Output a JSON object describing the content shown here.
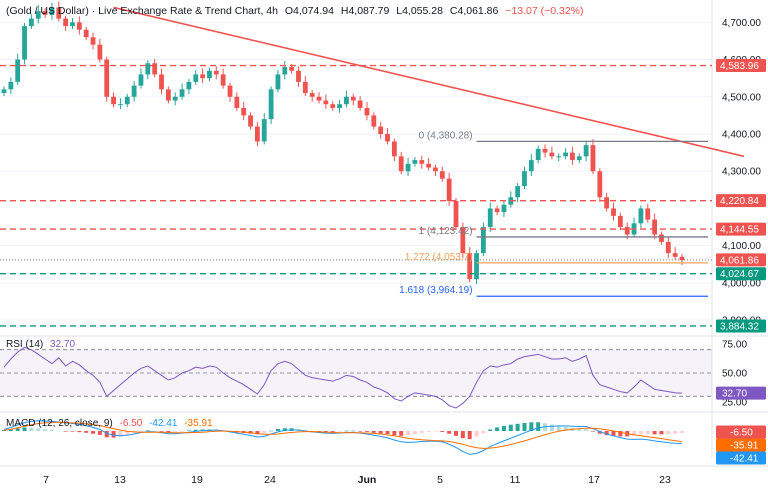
{
  "header": {
    "symbol": "(Gold / US Dollar) · Live Exchange Rate & Trend Chart, 4h",
    "open": "O4,074.94",
    "high": "H4,087.79",
    "low": "L4,055.28",
    "close": "C4,061.86",
    "change": "−13.07 (−0.32%)"
  },
  "colors": {
    "up": "#26a69a",
    "down": "#ef5350",
    "trend": "#ef5350",
    "support": "#089981",
    "fib_orange": "#f7a35c",
    "fib_blue": "#2962ff",
    "gray": "#787b86",
    "rsi": "#7e57c2",
    "macd": "#2196f3",
    "signal": "#ff6d00"
  },
  "chart_data": [
    {
      "type": "candlestick",
      "title": "",
      "x_ticks": [
        "7",
        "13",
        "19",
        "24",
        "Jun",
        "5",
        "11",
        "17",
        "23"
      ],
      "ylim": [
        3860,
        4760
      ],
      "y_ticks": [
        "4,700.00",
        "4,600.00",
        "4,500.00",
        "4,400.00",
        "4,300.00",
        "4,100.00",
        "4,000.00",
        "3,900.00"
      ],
      "price_levels": [
        {
          "value": 4583.96,
          "label": "4,583.96",
          "style": "red-dashed"
        },
        {
          "value": 4220.84,
          "label": "4,220.84",
          "style": "red-dashed"
        },
        {
          "value": 4144.55,
          "label": "4,144.55",
          "style": "red-dashed"
        },
        {
          "value": 4061.86,
          "label": "4,061.86",
          "style": "current"
        },
        {
          "value": 4024.67,
          "label": "4,024.67",
          "style": "green-dashed"
        },
        {
          "value": 3884.32,
          "label": "3,884.32",
          "style": "green-dashed"
        }
      ],
      "fib_levels": [
        {
          "value": 4380.28,
          "label": "0 (4,380.28)",
          "color": "gray"
        },
        {
          "value": 4123.42,
          "label": "1 (4,123.42)",
          "color": "gray"
        },
        {
          "value": 4053.7,
          "label": "1.272 (4,053.7)",
          "color": "orange"
        },
        {
          "value": 3964.19,
          "label": "1.618 (3,964.19)",
          "color": "blue"
        }
      ],
      "close_path": [
        4520,
        4540,
        4600,
        4690,
        4710,
        4730,
        4720,
        4740,
        4710,
        4690,
        4700,
        4680,
        4660,
        4640,
        4600,
        4500,
        4480,
        4480,
        4500,
        4530,
        4560,
        4590,
        4560,
        4520,
        4490,
        4500,
        4520,
        4540,
        4560,
        4550,
        4570,
        4560,
        4530,
        4500,
        4470,
        4450,
        4420,
        4380,
        4440,
        4520,
        4560,
        4580,
        4570,
        4540,
        4510,
        4500,
        4490,
        4480,
        4470,
        4480,
        4500,
        4490,
        4470,
        4450,
        4420,
        4400,
        4380,
        4340,
        4300,
        4320,
        4330,
        4320,
        4310,
        4300,
        4280,
        4220,
        4150,
        4080,
        4010,
        4080,
        4150,
        4200,
        4190,
        4210,
        4230,
        4260,
        4300,
        4330,
        4360,
        4350,
        4340,
        4340,
        4350,
        4330,
        4340,
        4370,
        4300,
        4230,
        4200,
        4180,
        4150,
        4130,
        4160,
        4200,
        4170,
        4130,
        4110,
        4080,
        4070,
        4061
      ]
    },
    {
      "type": "line",
      "title": "",
      "label": "RSI (14)",
      "value_label": "32.70",
      "ylim": [
        20,
        80
      ],
      "y_ticks": [
        "75.00",
        "50.00",
        "25.00"
      ],
      "band": [
        30,
        70
      ],
      "values": [
        55,
        62,
        68,
        72,
        70,
        66,
        62,
        58,
        63,
        56,
        60,
        57,
        52,
        48,
        42,
        30,
        35,
        40,
        45,
        50,
        54,
        56,
        52,
        48,
        44,
        46,
        50,
        52,
        55,
        54,
        56,
        55,
        50,
        46,
        43,
        40,
        36,
        32,
        40,
        52,
        58,
        60,
        58,
        53,
        48,
        46,
        45,
        44,
        43,
        45,
        48,
        47,
        44,
        42,
        38,
        36,
        33,
        28,
        26,
        30,
        33,
        32,
        31,
        30,
        27,
        22,
        20,
        24,
        30,
        42,
        52,
        56,
        55,
        57,
        58,
        62,
        64,
        65,
        66,
        64,
        62,
        62,
        63,
        60,
        62,
        65,
        48,
        40,
        38,
        36,
        34,
        33,
        38,
        44,
        40,
        36,
        35,
        34,
        33,
        32.7
      ]
    },
    {
      "type": "bar+line",
      "title": "",
      "label": "MACD (12, 26, close, 9)",
      "macd_value": "-42.41",
      "signal_value": "-35.91",
      "hist_value": "-6.50",
      "ylim": [
        -90,
        50
      ],
      "macd": [
        5,
        12,
        20,
        28,
        32,
        34,
        33,
        32,
        30,
        27,
        25,
        22,
        18,
        12,
        5,
        -8,
        -14,
        -16,
        -14,
        -10,
        -5,
        -2,
        -3,
        -6,
        -9,
        -9,
        -7,
        -4,
        -1,
        1,
        3,
        3,
        1,
        -3,
        -7,
        -11,
        -15,
        -20,
        -18,
        -10,
        -3,
        2,
        4,
        3,
        0,
        -3,
        -5,
        -7,
        -8,
        -7,
        -5,
        -5,
        -7,
        -10,
        -14,
        -18,
        -23,
        -30,
        -36,
        -38,
        -37,
        -35,
        -34,
        -34,
        -36,
        -44,
        -55,
        -68,
        -78,
        -75,
        -65,
        -52,
        -42,
        -33,
        -24,
        -15,
        -6,
        3,
        10,
        14,
        16,
        17,
        17,
        16,
        15,
        15,
        8,
        -2,
        -10,
        -16,
        -22,
        -27,
        -28,
        -27,
        -29,
        -33,
        -36,
        -39,
        -41,
        -42.41
      ],
      "signal": [
        2,
        6,
        11,
        16,
        21,
        25,
        27,
        28,
        29,
        28,
        27,
        26,
        24,
        21,
        18,
        13,
        8,
        3,
        -1,
        -3,
        -4,
        -4,
        -4,
        -4,
        -5,
        -6,
        -6,
        -6,
        -5,
        -4,
        -2,
        -1,
        0,
        -1,
        -2,
        -4,
        -6,
        -9,
        -11,
        -11,
        -10,
        -7,
        -5,
        -3,
        -2,
        -2,
        -3,
        -4,
        -5,
        -6,
        -6,
        -6,
        -6,
        -7,
        -8,
        -10,
        -13,
        -16,
        -20,
        -24,
        -27,
        -29,
        -31,
        -32,
        -33,
        -35,
        -39,
        -44,
        -51,
        -56,
        -58,
        -57,
        -54,
        -50,
        -45,
        -39,
        -33,
        -26,
        -19,
        -12,
        -6,
        -1,
        3,
        6,
        8,
        9,
        9,
        7,
        4,
        0,
        -4,
        -9,
        -13,
        -16,
        -19,
        -22,
        -25,
        -29,
        -32,
        -35.91
      ]
    }
  ]
}
